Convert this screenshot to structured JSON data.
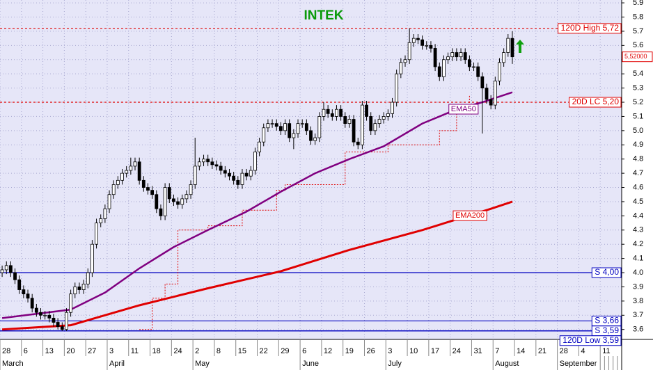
{
  "chart_data": {
    "type": "candlestick",
    "title": "INTEK",
    "categories": [
      "28",
      null,
      null,
      null,
      null,
      "6",
      null,
      null,
      null,
      null,
      "13",
      null,
      null,
      null,
      null,
      "20",
      null,
      null,
      null,
      null,
      "27",
      null,
      null,
      null,
      null,
      "3",
      null,
      null,
      null,
      null,
      "11",
      null,
      null,
      null,
      null,
      "18",
      null,
      null,
      null,
      null,
      "24",
      null,
      null,
      null,
      null,
      "2",
      null,
      null,
      null,
      null,
      "8",
      null,
      null,
      null,
      null,
      "15",
      null,
      null,
      null,
      null,
      "22",
      null,
      null,
      null,
      null,
      "29",
      null,
      null,
      null,
      null,
      "6",
      null,
      null,
      null,
      null,
      "12",
      null,
      null,
      null,
      null,
      "19",
      null,
      null,
      null,
      null,
      "26",
      null,
      null,
      null,
      null,
      "3",
      null,
      null,
      null,
      null,
      "10",
      null,
      null,
      null,
      null,
      "17",
      null,
      null,
      null,
      null,
      "24",
      null,
      null,
      null,
      null,
      "31",
      null,
      null,
      null,
      null,
      "7",
      null,
      null,
      null,
      null,
      "14",
      null,
      null,
      null,
      null,
      "21",
      null,
      null,
      null,
      null,
      "28",
      null,
      null,
      null,
      null,
      "4",
      null,
      null,
      null,
      null,
      "11",
      null,
      null,
      null,
      null
    ],
    "months": [
      "March",
      null,
      null,
      null,
      null,
      null,
      null,
      null,
      null,
      null,
      null,
      null,
      null,
      null,
      null,
      null,
      null,
      null,
      null,
      null,
      null,
      null,
      null,
      null,
      null,
      "April",
      null,
      null,
      null,
      null,
      null,
      null,
      null,
      null,
      null,
      null,
      null,
      null,
      null,
      null,
      null,
      null,
      null,
      null,
      null,
      "May",
      null,
      null,
      null,
      null,
      null,
      null,
      null,
      null,
      null,
      null,
      null,
      null,
      null,
      null,
      null,
      null,
      null,
      null,
      null,
      null,
      null,
      null,
      null,
      null,
      "June",
      null,
      null,
      null,
      null,
      null,
      null,
      null,
      null,
      null,
      null,
      null,
      null,
      null,
      null,
      null,
      null,
      null,
      null,
      null,
      "July",
      null,
      null,
      null,
      null,
      null,
      null,
      null,
      null,
      null,
      null,
      null,
      null,
      null,
      null,
      null,
      null,
      null,
      null,
      null,
      null,
      null,
      null,
      null,
      null,
      "August",
      null,
      null,
      null,
      null,
      null,
      null,
      null,
      null,
      null,
      null,
      null,
      null,
      null,
      null,
      "September",
      null,
      null,
      null,
      null,
      null,
      null,
      null,
      null,
      null
    ],
    "open": [
      4.0,
      4.02,
      4.05,
      4.0,
      3.95,
      3.88,
      3.85,
      3.82,
      3.75,
      3.72,
      3.7,
      3.7,
      3.68,
      3.65,
      3.62,
      3.6,
      3.72,
      3.85,
      3.9,
      3.88,
      3.92,
      4.0,
      4.2,
      4.35,
      4.38,
      4.45,
      4.55,
      4.62,
      4.65,
      4.7,
      4.72,
      4.75,
      4.78,
      4.65,
      4.6,
      4.58,
      4.55,
      4.45,
      4.4,
      4.6,
      4.52,
      4.5,
      4.48,
      4.52,
      4.55,
      4.62,
      4.75,
      4.78,
      4.8,
      4.78,
      4.76,
      4.75,
      4.72,
      4.7,
      4.68,
      4.65,
      4.62,
      4.7,
      4.68,
      4.72,
      4.85,
      4.92,
      5.02,
      5.05,
      5.05,
      5.03,
      5.0,
      5.05,
      4.95,
      4.98,
      5.05,
      5.05,
      5.0,
      4.93,
      4.95,
      5.1,
      5.15,
      5.12,
      5.1,
      5.15,
      5.1,
      5.05,
      5.08,
      4.92,
      4.9,
      5.18,
      5.1,
      5.0,
      5.05,
      5.08,
      5.1,
      5.12,
      5.2,
      5.4,
      5.48,
      5.5,
      5.62,
      5.65,
      5.64,
      5.6,
      5.6,
      5.58,
      5.45,
      5.38,
      5.5,
      5.52,
      5.55,
      5.52,
      5.55,
      5.5,
      5.45,
      5.45,
      5.38,
      5.3,
      5.22,
      5.18,
      5.35,
      5.48,
      5.55,
      5.65,
      null,
      null,
      null,
      null,
      null,
      null,
      null,
      null,
      null,
      null,
      null,
      null,
      null,
      null,
      null,
      null,
      null,
      null,
      null,
      null,
      null,
      null,
      null,
      null,
      null
    ],
    "high": [
      4.05,
      4.08,
      4.08,
      4.03,
      3.98,
      3.91,
      3.88,
      3.85,
      3.78,
      3.75,
      3.73,
      3.73,
      3.71,
      3.68,
      3.65,
      3.75,
      3.88,
      3.93,
      3.93,
      3.95,
      4.03,
      4.23,
      4.38,
      4.41,
      4.48,
      4.58,
      4.65,
      4.68,
      4.73,
      4.75,
      4.81,
      4.81,
      4.81,
      4.68,
      4.63,
      4.61,
      4.58,
      4.48,
      4.63,
      4.63,
      4.55,
      4.53,
      4.55,
      4.58,
      4.65,
      4.95,
      4.81,
      4.83,
      4.83,
      4.81,
      4.79,
      4.78,
      4.75,
      4.73,
      4.71,
      4.68,
      4.73,
      4.73,
      4.75,
      4.88,
      4.95,
      5.05,
      5.08,
      5.08,
      5.08,
      5.06,
      5.08,
      5.08,
      5.01,
      5.08,
      5.08,
      5.08,
      5.03,
      4.98,
      5.13,
      5.2,
      5.18,
      5.15,
      5.18,
      5.18,
      5.13,
      5.11,
      5.11,
      4.95,
      5.21,
      5.21,
      5.13,
      5.08,
      5.11,
      5.13,
      5.15,
      5.23,
      5.43,
      5.51,
      5.53,
      5.72,
      5.68,
      5.68,
      5.67,
      5.63,
      5.63,
      5.61,
      5.48,
      5.53,
      5.55,
      5.58,
      5.58,
      5.58,
      5.58,
      5.53,
      5.48,
      5.48,
      5.41,
      5.33,
      5.25,
      5.38,
      5.51,
      5.58,
      5.68,
      5.7,
      null,
      null,
      null,
      null,
      null,
      null,
      null,
      null,
      null,
      null,
      null,
      null,
      null,
      null,
      null,
      null,
      null,
      null,
      null,
      null,
      null,
      null,
      null,
      null,
      null
    ],
    "low": [
      3.97,
      3.99,
      3.97,
      3.92,
      3.85,
      3.82,
      3.79,
      3.72,
      3.69,
      3.67,
      3.67,
      3.65,
      3.62,
      3.6,
      3.59,
      3.59,
      3.69,
      3.82,
      3.85,
      3.85,
      3.89,
      3.97,
      4.17,
      4.32,
      4.35,
      4.42,
      4.52,
      4.59,
      4.62,
      4.67,
      4.69,
      4.72,
      4.62,
      4.57,
      4.55,
      4.52,
      4.42,
      4.37,
      4.37,
      4.49,
      4.47,
      4.45,
      4.45,
      4.49,
      4.52,
      4.59,
      4.72,
      4.75,
      4.75,
      4.73,
      4.72,
      4.69,
      4.67,
      4.65,
      4.62,
      4.59,
      4.59,
      4.65,
      4.65,
      4.69,
      4.82,
      4.89,
      4.99,
      5.02,
      5.0,
      4.97,
      4.97,
      4.92,
      4.87,
      4.95,
      5.02,
      4.97,
      4.9,
      4.9,
      4.92,
      5.07,
      5.09,
      5.07,
      5.07,
      5.07,
      5.02,
      5.02,
      4.89,
      4.87,
      4.87,
      5.07,
      4.97,
      4.97,
      5.02,
      5.05,
      5.07,
      5.09,
      5.17,
      5.37,
      5.45,
      5.47,
      5.59,
      5.61,
      5.57,
      5.57,
      5.55,
      5.42,
      5.35,
      5.35,
      5.47,
      5.49,
      5.49,
      5.49,
      5.47,
      5.42,
      5.42,
      5.35,
      4.98,
      5.19,
      5.15,
      5.15,
      5.32,
      5.45,
      5.52,
      5.47,
      null,
      null,
      null,
      null,
      null,
      null,
      null,
      null,
      null,
      null,
      null,
      null,
      null,
      null,
      null,
      null,
      null,
      null,
      null,
      null,
      null,
      null,
      null,
      null,
      null
    ],
    "close": [
      4.02,
      4.05,
      4.0,
      3.95,
      3.88,
      3.85,
      3.82,
      3.75,
      3.72,
      3.7,
      3.7,
      3.68,
      3.65,
      3.62,
      3.6,
      3.72,
      3.85,
      3.9,
      3.88,
      3.92,
      4.0,
      4.2,
      4.35,
      4.38,
      4.45,
      4.55,
      4.62,
      4.65,
      4.7,
      4.72,
      4.75,
      4.78,
      4.65,
      4.6,
      4.58,
      4.55,
      4.45,
      4.4,
      4.6,
      4.52,
      4.5,
      4.48,
      4.52,
      4.55,
      4.62,
      4.75,
      4.78,
      4.8,
      4.78,
      4.76,
      4.75,
      4.72,
      4.7,
      4.68,
      4.65,
      4.62,
      4.7,
      4.68,
      4.72,
      4.85,
      4.92,
      5.02,
      5.05,
      5.05,
      5.03,
      5.0,
      5.05,
      4.95,
      4.98,
      5.05,
      5.05,
      5.0,
      4.93,
      4.95,
      5.1,
      5.15,
      5.12,
      5.1,
      5.15,
      5.1,
      5.05,
      5.08,
      4.92,
      4.9,
      5.18,
      5.1,
      5.0,
      5.05,
      5.08,
      5.1,
      5.12,
      5.2,
      5.4,
      5.48,
      5.5,
      5.62,
      5.65,
      5.64,
      5.6,
      5.6,
      5.58,
      5.45,
      5.38,
      5.5,
      5.52,
      5.55,
      5.52,
      5.55,
      5.5,
      5.45,
      5.45,
      5.38,
      5.3,
      5.22,
      5.18,
      5.35,
      5.48,
      5.55,
      5.65,
      5.52,
      null,
      null,
      null,
      null,
      null,
      null,
      null,
      null,
      null,
      null,
      null,
      null,
      null,
      null,
      null,
      null,
      null,
      null,
      null,
      null,
      null,
      null,
      null,
      null,
      null
    ],
    "up_color": "#ffffff",
    "down_color": "#000000",
    "ylim": [
      3.53,
      5.92
    ],
    "yticks": [
      3.6,
      3.7,
      3.8,
      3.9,
      {
        "value": 4,
        "label": "4.0"
      },
      4.1,
      4.2,
      4.3,
      4.4,
      4.5,
      4.6,
      4.7,
      4.8,
      4.9,
      {
        "value": 5,
        "label": "5.0"
      },
      5.1,
      5.2,
      5.3,
      5.4,
      5.5,
      5.6,
      5.7,
      5.8,
      5.9
    ],
    "grid": true,
    "series": [
      {
        "name": "EMA50",
        "color": "#800080",
        "x": [
          0,
          16,
          24,
          32,
          40,
          48,
          57,
          65,
          73,
          81,
          89,
          98,
          106,
          112,
          119
        ],
        "values": [
          3.68,
          3.74,
          3.86,
          4.03,
          4.18,
          4.3,
          4.43,
          4.57,
          4.7,
          4.8,
          4.89,
          5.05,
          5.15,
          5.2,
          5.27
        ]
      },
      {
        "name": "EMA200",
        "color": "#e00000",
        "x": [
          0,
          16,
          32,
          48,
          65,
          81,
          98,
          114,
          119
        ],
        "values": [
          3.6,
          3.63,
          3.77,
          3.89,
          4.01,
          4.16,
          4.3,
          4.45,
          4.5
        ]
      }
    ],
    "stop_line": {
      "color": "#e00000",
      "x": [
        32,
        35,
        38,
        41,
        48,
        56,
        64,
        66,
        80,
        90,
        100,
        102,
        106,
        109
      ],
      "values": [
        3.6,
        3.82,
        3.92,
        4.3,
        4.33,
        4.44,
        4.58,
        4.62,
        4.85,
        4.9,
        4.9,
        5.0,
        5.12,
        5.25
      ]
    },
    "levels": [
      {
        "label": "120D High 5,72",
        "value": 5.72,
        "color": "#e00000",
        "style": "dashed"
      },
      {
        "label": "20D LC 5,20",
        "value": 5.2,
        "color": "#e00000",
        "style": "dashed"
      },
      {
        "label": "S 4,00",
        "value": 4.0,
        "color": "#0000c0",
        "style": "solid"
      },
      {
        "label": "S 3,66",
        "value": 3.66,
        "color": "#0000c0",
        "style": "solid"
      },
      {
        "label": "S 3,59",
        "value": 3.59,
        "color": "#0000c0",
        "style": "solid"
      },
      {
        "label": "120D Low 3,59",
        "value": 3.59,
        "color": "#0000c0",
        "style": "solid"
      }
    ],
    "last_price": {
      "value": 5.52,
      "label": "5,52000",
      "color": "#e00000"
    }
  }
}
